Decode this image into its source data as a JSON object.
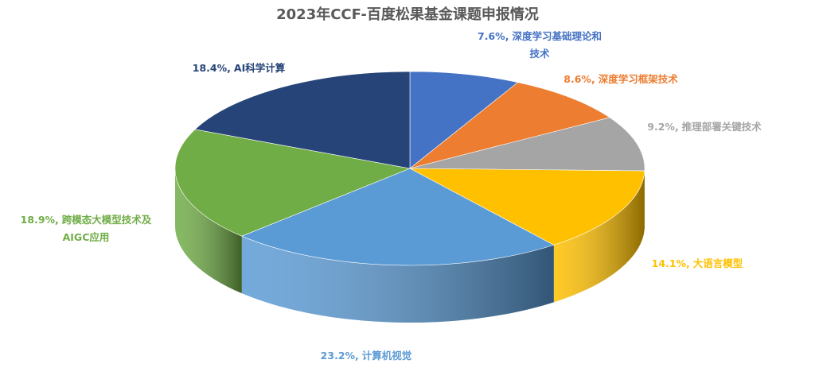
{
  "chart_data": {
    "type": "pie3d",
    "title": "2023年CCF-百度松果基金课题申报情况",
    "categories": [
      "深度学习基础理论和技术",
      "深度学习框架技术",
      "推理部署关键技术",
      "大语言模型",
      "计算机视觉",
      "跨模态大模型技术及AIGC应用",
      "AI科学计算"
    ],
    "values": [
      7.6,
      8.6,
      9.2,
      14.1,
      23.2,
      18.9,
      18.4
    ],
    "value_labels": [
      "7.6%,",
      "8.6%,",
      "9.2%,",
      "14.1%,",
      "23.2%,",
      "18.9%,",
      "18.4%,"
    ],
    "colors": [
      "#4472c4",
      "#ed7d31",
      "#a5a5a5",
      "#ffc000",
      "#5b9bd5",
      "#70ad47",
      "#264478"
    ]
  }
}
